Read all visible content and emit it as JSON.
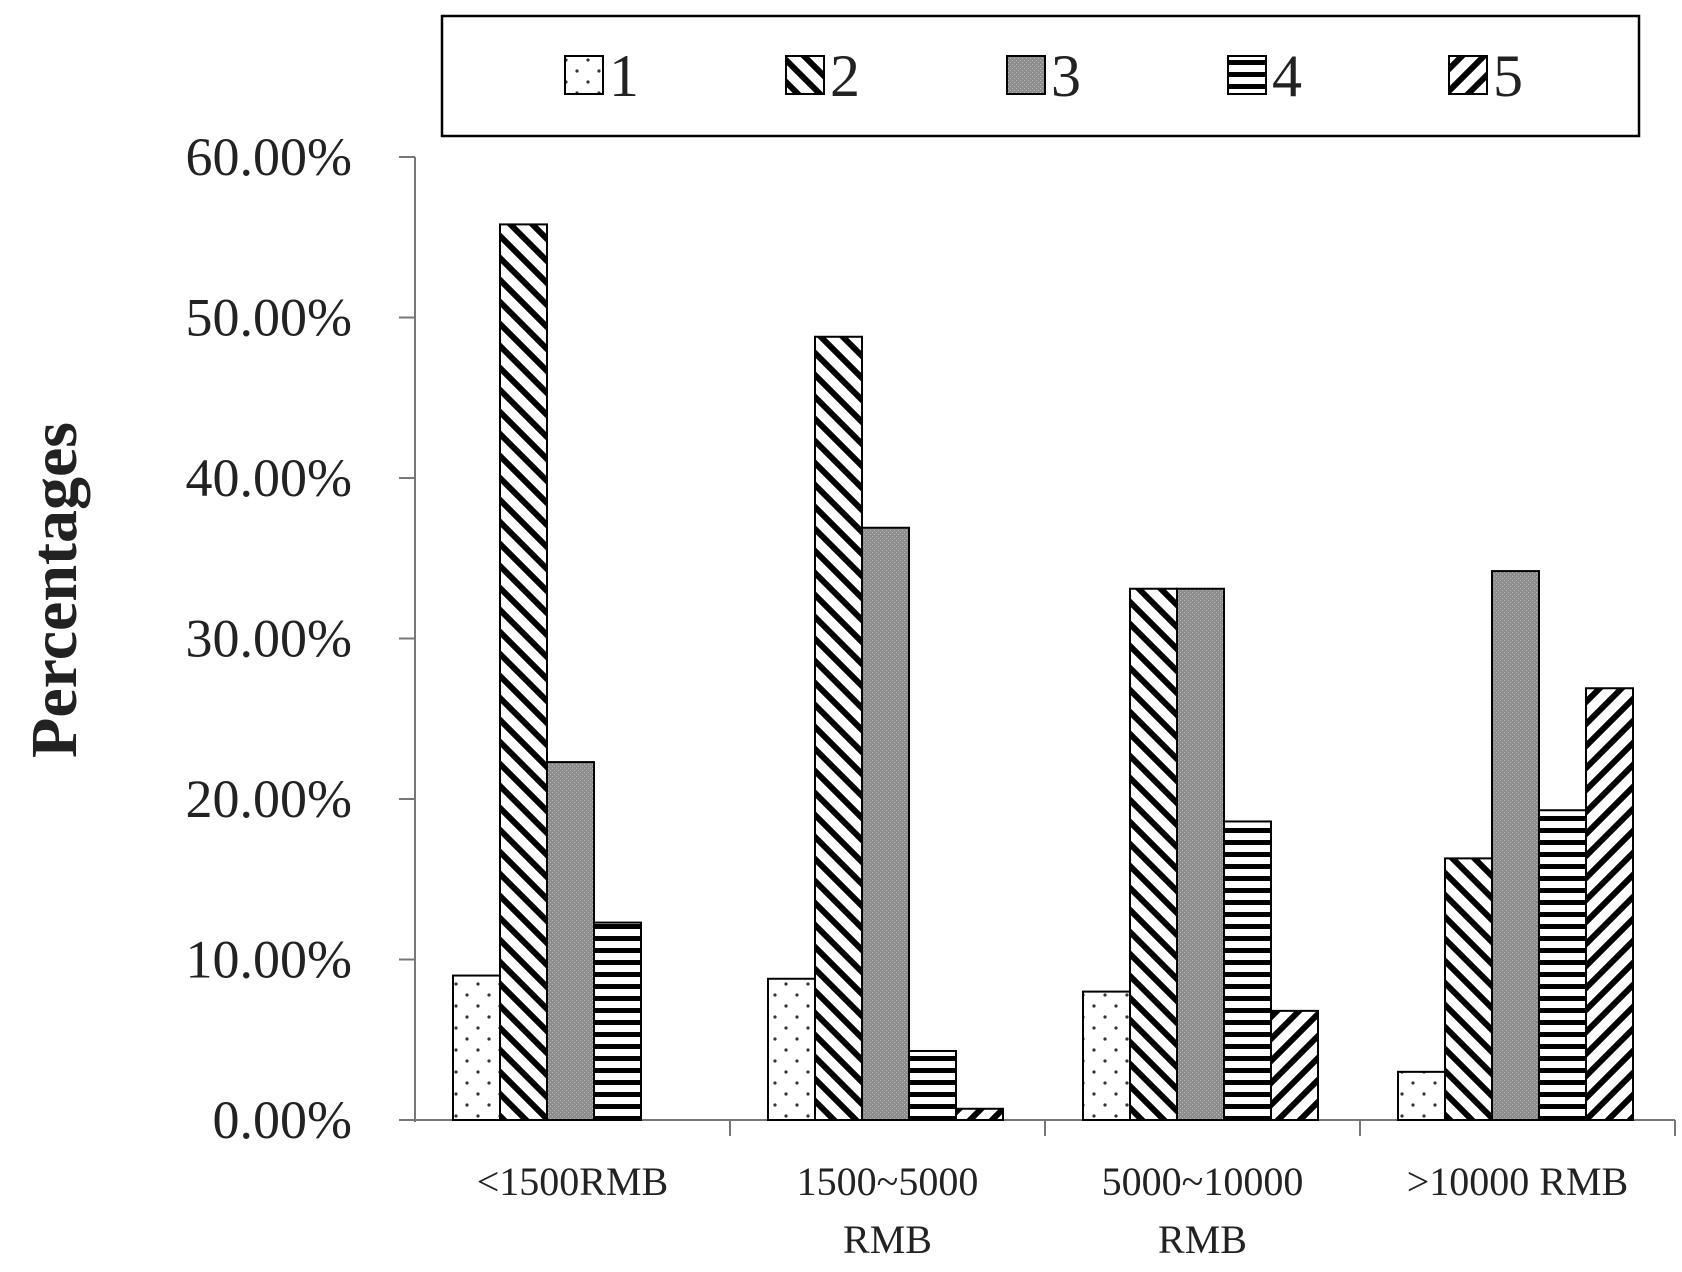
{
  "chart_data": {
    "type": "bar",
    "title": "",
    "xlabel": "",
    "ylabel": "Percentages",
    "ylim": [
      0,
      0.6
    ],
    "yticks": [
      "0.00%",
      "10.00%",
      "20.00%",
      "30.00%",
      "40.00%",
      "50.00%",
      "60.00%"
    ],
    "categories": [
      [
        "<1500RMB"
      ],
      [
        "1500~5000",
        "RMB"
      ],
      [
        "5000~10000",
        "RMB"
      ],
      [
        ">10000 RMB"
      ]
    ],
    "series": [
      {
        "name": "1",
        "pattern": "dots",
        "values": [
          0.09,
          0.088,
          0.08,
          0.03
        ]
      },
      {
        "name": "2",
        "pattern": "backslash",
        "values": [
          0.558,
          0.488,
          0.331,
          0.163
        ]
      },
      {
        "name": "3",
        "pattern": "gray",
        "values": [
          0.223,
          0.369,
          0.331,
          0.342
        ]
      },
      {
        "name": "4",
        "pattern": "horizontal",
        "values": [
          0.123,
          0.043,
          0.186,
          0.193
        ]
      },
      {
        "name": "5",
        "pattern": "slash",
        "values": [
          0.0,
          0.007,
          0.068,
          0.269
        ]
      }
    ],
    "legend_position": "top",
    "grid": false
  }
}
